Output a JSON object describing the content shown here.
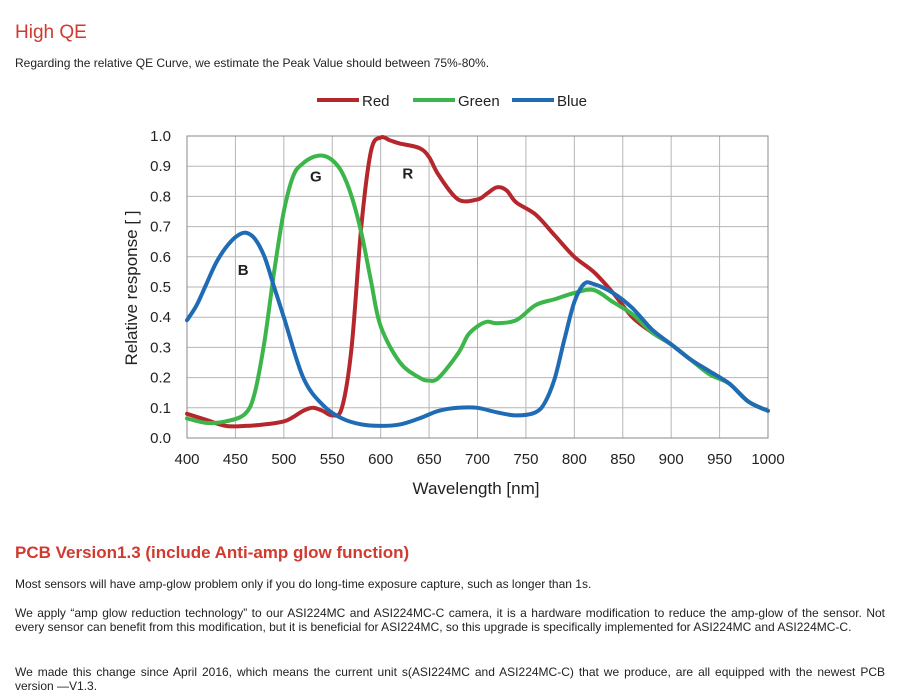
{
  "heading": "High QE",
  "intro": "Regarding the relative QE Curve, we estimate the Peak Value should between 75%-80%.",
  "pcb_heading": "PCB Version1.3 (include Anti-amp glow function)",
  "paragraphs": [
    "Most sensors will have amp-glow problem only if you do long-time exposure capture, such as longer than 1s.",
    "We apply “amp glow reduction technology” to our ASI224MC and ASI224MC-C camera, it is a hardware modification to reduce the amp-glow of the sensor. Not every sensor can benefit from this modification, but it is beneficial for ASI224MC, so this upgrade is specifically implemented for ASI224MC and ASI224MC-C.",
    "We made this change since April 2016, which means the current unit s(ASI224MC and ASI224MC-C) that we produce, are all equipped with the newest PCB version —V1.3."
  ],
  "chart_data": {
    "type": "line",
    "title": "",
    "xlabel": "Wavelength [nm]",
    "ylabel": "Relative response [ ]",
    "xlim": [
      400,
      1000
    ],
    "ylim": [
      0,
      1.0
    ],
    "xticks": [
      400,
      450,
      500,
      550,
      600,
      650,
      700,
      750,
      800,
      850,
      900,
      950,
      1000
    ],
    "yticks": [
      0.0,
      0.1,
      0.2,
      0.3,
      0.4,
      0.5,
      0.6,
      0.7,
      0.8,
      0.9,
      1.0
    ],
    "grid": true,
    "legend_position": "top",
    "series": [
      {
        "name": "Red",
        "color": "#b5272d",
        "x": [
          400,
          420,
          440,
          460,
          480,
          500,
          510,
          520,
          530,
          540,
          550,
          560,
          570,
          580,
          590,
          600,
          610,
          620,
          640,
          650,
          660,
          680,
          700,
          710,
          720,
          730,
          740,
          760,
          780,
          800,
          820,
          840,
          860,
          880,
          900,
          920,
          940,
          960,
          980,
          1000
        ],
        "y": [
          0.08,
          0.06,
          0.04,
          0.04,
          0.045,
          0.055,
          0.07,
          0.09,
          0.1,
          0.09,
          0.075,
          0.1,
          0.3,
          0.7,
          0.95,
          0.995,
          0.985,
          0.975,
          0.96,
          0.93,
          0.87,
          0.79,
          0.79,
          0.81,
          0.83,
          0.82,
          0.78,
          0.74,
          0.67,
          0.6,
          0.55,
          0.48,
          0.4,
          0.35,
          0.31,
          0.26,
          0.22,
          0.18,
          0.12,
          0.09
        ]
      },
      {
        "name": "Green",
        "color": "#3cb54a",
        "x": [
          400,
          420,
          440,
          460,
          470,
          480,
          490,
          500,
          510,
          520,
          530,
          540,
          550,
          560,
          570,
          580,
          590,
          600,
          620,
          640,
          650,
          660,
          680,
          690,
          700,
          710,
          720,
          740,
          760,
          780,
          800,
          820,
          840,
          860,
          880,
          900,
          920,
          940,
          960,
          980,
          1000
        ],
        "y": [
          0.065,
          0.05,
          0.055,
          0.08,
          0.15,
          0.32,
          0.55,
          0.75,
          0.87,
          0.91,
          0.93,
          0.935,
          0.92,
          0.88,
          0.8,
          0.68,
          0.52,
          0.37,
          0.25,
          0.2,
          0.19,
          0.2,
          0.28,
          0.34,
          0.37,
          0.385,
          0.38,
          0.39,
          0.44,
          0.46,
          0.48,
          0.49,
          0.45,
          0.41,
          0.35,
          0.31,
          0.26,
          0.21,
          0.18,
          0.12,
          0.09
        ]
      },
      {
        "name": "Blue",
        "color": "#1f6cb4",
        "x": [
          400,
          410,
          420,
          430,
          440,
          450,
          460,
          470,
          480,
          490,
          500,
          520,
          540,
          560,
          580,
          600,
          620,
          640,
          660,
          680,
          700,
          720,
          740,
          760,
          770,
          780,
          790,
          800,
          810,
          820,
          840,
          860,
          880,
          900,
          920,
          940,
          960,
          980,
          1000
        ],
        "y": [
          0.39,
          0.44,
          0.51,
          0.58,
          0.63,
          0.665,
          0.68,
          0.66,
          0.6,
          0.5,
          0.4,
          0.2,
          0.11,
          0.065,
          0.045,
          0.04,
          0.045,
          0.065,
          0.09,
          0.1,
          0.1,
          0.085,
          0.075,
          0.085,
          0.12,
          0.2,
          0.33,
          0.45,
          0.51,
          0.51,
          0.48,
          0.43,
          0.36,
          0.31,
          0.26,
          0.22,
          0.18,
          0.12,
          0.09
        ]
      }
    ],
    "annotations": [
      {
        "text": "G",
        "x": 533,
        "y": 0.85
      },
      {
        "text": "R",
        "x": 628,
        "y": 0.86
      },
      {
        "text": "B",
        "x": 458,
        "y": 0.54
      }
    ]
  }
}
